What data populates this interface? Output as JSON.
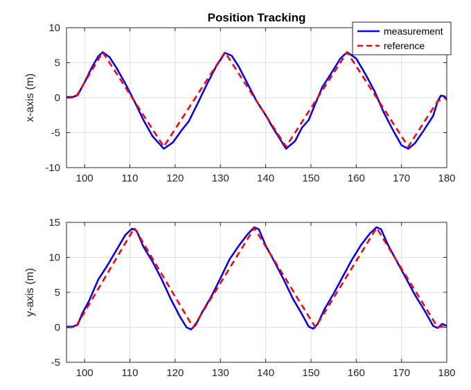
{
  "chart_data": [
    {
      "type": "line",
      "title": "Position Tracking",
      "xlabel": "",
      "ylabel": "x-axis (m)",
      "xlim": [
        96,
        180
      ],
      "ylim": [
        -10,
        10
      ],
      "xticks": [
        100,
        110,
        120,
        130,
        140,
        150,
        160,
        170,
        180
      ],
      "yticks": [
        -10,
        -5,
        0,
        5,
        10
      ],
      "grid": true,
      "legend": {
        "placement": "top-right",
        "entries": [
          "measurement",
          "reference"
        ]
      },
      "series": [
        {
          "name": "measurement",
          "color": "#0000ff",
          "style": "solid",
          "x": [
            96,
            97.5,
            98.5,
            100,
            101.5,
            103,
            104,
            105.5,
            107,
            109,
            111,
            113,
            115,
            117.5,
            119.5,
            121.5,
            123,
            125,
            127,
            129,
            131,
            132.5,
            134,
            136,
            138,
            140,
            141.5,
            144.5,
            146.5,
            148,
            149.5,
            151,
            152.5,
            154.5,
            156.5,
            158,
            160,
            162,
            164,
            166,
            168,
            170,
            171.5,
            173,
            175,
            177,
            178,
            178.7,
            179.5,
            180
          ],
          "y": [
            0.1,
            0.1,
            0.4,
            2.2,
            4.2,
            5.9,
            6.5,
            5.8,
            4.3,
            2.0,
            -0.5,
            -3.2,
            -5.5,
            -7.3,
            -6.4,
            -4.6,
            -3.4,
            -0.8,
            1.9,
            4.4,
            6.4,
            6.0,
            4.5,
            2.0,
            -0.5,
            -2.5,
            -4.2,
            -7.3,
            -6.2,
            -4.3,
            -3.2,
            -0.8,
            1.5,
            3.5,
            5.6,
            6.5,
            5.6,
            3.4,
            1.0,
            -2.0,
            -4.5,
            -6.8,
            -7.3,
            -6.5,
            -4.6,
            -2.6,
            -0.5,
            0.3,
            0.2,
            -0.3
          ]
        },
        {
          "name": "reference",
          "color": "#ff0000",
          "style": "dashed",
          "x": [
            96,
            97.5,
            98,
            104,
            117.5,
            131,
            144.5,
            158,
            171.5,
            178,
            180
          ],
          "y": [
            0,
            0,
            0,
            6.5,
            -7.0,
            6.5,
            -7.0,
            6.5,
            -7.0,
            -0.5,
            0
          ]
        }
      ]
    },
    {
      "type": "line",
      "title": "",
      "xlabel": "",
      "ylabel": "y-axis (m)",
      "xlim": [
        96,
        180
      ],
      "ylim": [
        -5,
        15
      ],
      "xticks": [
        100,
        110,
        120,
        130,
        140,
        150,
        160,
        170,
        180
      ],
      "yticks": [
        -5,
        0,
        5,
        10,
        15
      ],
      "grid": true,
      "series": [
        {
          "name": "measurement",
          "color": "#0000ff",
          "style": "solid",
          "x": [
            96,
            97.5,
            98.5,
            99.5,
            101,
            103,
            105,
            107,
            109,
            110.5,
            111.5,
            113,
            115,
            117,
            119,
            121,
            122.5,
            123.5,
            124.5,
            126,
            128,
            130,
            132,
            134,
            136,
            137.5,
            138.5,
            140,
            142,
            144,
            146,
            148,
            149.5,
            150.5,
            151.5,
            153,
            155,
            157,
            159,
            161,
            163,
            164.5,
            165.5,
            167,
            169,
            171,
            173,
            175,
            177,
            178,
            179,
            180
          ],
          "y": [
            0.1,
            0.1,
            0.4,
            2.0,
            3.8,
            6.8,
            8.8,
            11.0,
            13.2,
            14.1,
            13.8,
            11.5,
            9.4,
            6.9,
            4.1,
            1.6,
            0.0,
            -0.3,
            0.3,
            2.2,
            4.4,
            7.0,
            9.7,
            11.6,
            13.3,
            14.3,
            14.0,
            11.7,
            9.3,
            6.8,
            4.1,
            1.9,
            0.1,
            -0.2,
            0.5,
            2.6,
            4.8,
            7.2,
            9.6,
            11.7,
            13.4,
            14.3,
            14.0,
            11.8,
            9.4,
            7.0,
            4.6,
            2.5,
            0.2,
            -0.1,
            0.5,
            0.2
          ]
        },
        {
          "name": "reference",
          "color": "#ff0000",
          "style": "dashed",
          "x": [
            96,
            97.5,
            98,
            111,
            124,
            137.5,
            151,
            164.5,
            178,
            180
          ],
          "y": [
            0,
            0,
            0,
            14.2,
            0,
            14.2,
            0,
            14.2,
            0,
            0.2
          ]
        }
      ]
    }
  ]
}
